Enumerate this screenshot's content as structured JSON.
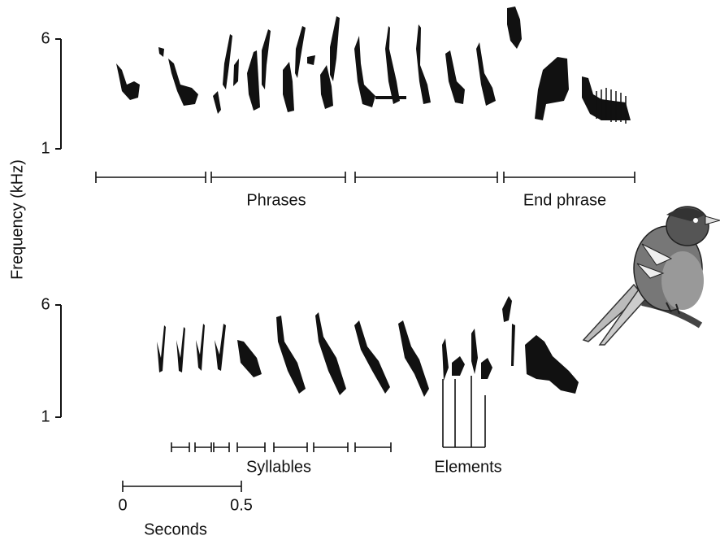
{
  "axis_label": "Frequency (kHz)",
  "upper": {
    "ticks": [
      "6",
      "1"
    ],
    "phrases": "Phrases",
    "end_phrase": "End phrase"
  },
  "lower": {
    "ticks": [
      "6",
      "1"
    ],
    "syllables": "Syllables",
    "elements": "Elements"
  },
  "time_scale": {
    "ticks": [
      "0",
      "0.5"
    ],
    "label": "Seconds"
  }
}
